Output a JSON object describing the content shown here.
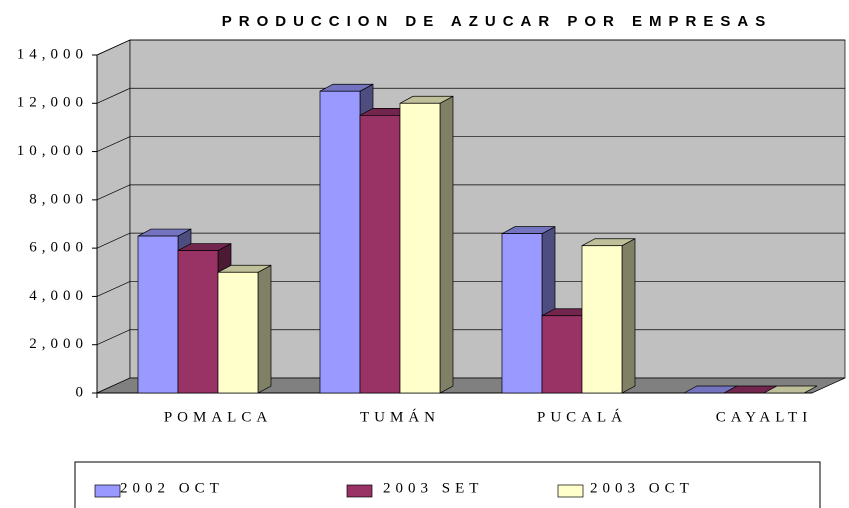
{
  "chart_data": {
    "type": "bar3d",
    "title": "PRODUCCION DE AZUCAR POR EMPRESAS",
    "categories": [
      "POMALCA",
      "TUMÁN",
      "PUCALÁ",
      "CAYALTI"
    ],
    "series": [
      {
        "name": "2002 OCT",
        "color": "#9999ff",
        "values": [
          6500,
          12500,
          6600,
          0
        ]
      },
      {
        "name": "2003 SET",
        "color": "#993366",
        "values": [
          5900,
          11500,
          3200,
          0
        ]
      },
      {
        "name": "2003 OCT",
        "color": "#ffffcc",
        "values": [
          5000,
          12000,
          6100,
          0
        ]
      }
    ],
    "ylim": [
      0,
      14000
    ],
    "yticks": [
      0,
      {
        "value": 2000,
        "label": "2,000"
      },
      {
        "value": 4000,
        "label": "4,000"
      },
      {
        "value": 6000,
        "label": "6,000"
      },
      {
        "value": 8000,
        "label": "8,000"
      },
      {
        "value": 10000,
        "label": "10,000"
      },
      {
        "value": 12000,
        "label": "12,000"
      },
      {
        "value": 14000,
        "label": "14,000"
      }
    ],
    "grid": true,
    "legend": "bottom"
  }
}
